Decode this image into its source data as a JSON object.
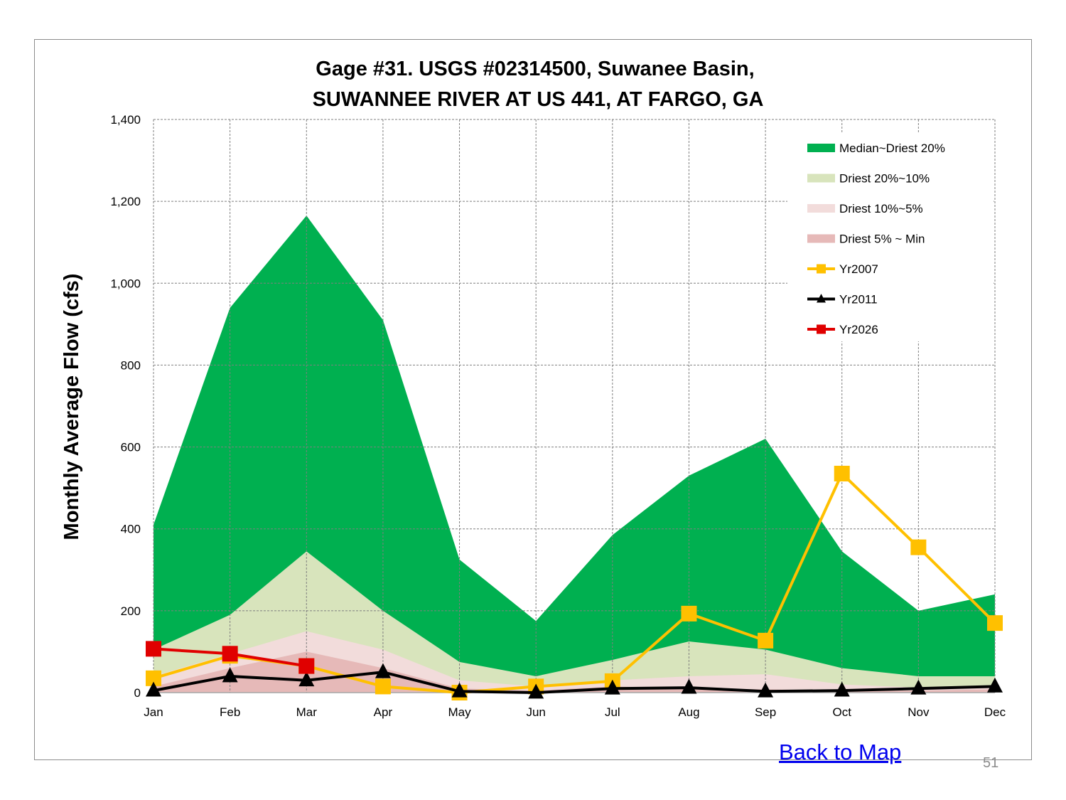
{
  "chart_data": {
    "type": "area",
    "title_lines": [
      "Gage #31. USGS #02314500, Suwanee Basin,",
      "SUWANNEE RIVER AT US 441, AT FARGO, GA"
    ],
    "ylabel": "Monthly Average Flow (cfs)",
    "xlabel": "",
    "ylim": [
      0,
      1400
    ],
    "yticks": [
      0,
      200,
      400,
      600,
      800,
      1000,
      1200,
      1400
    ],
    "ytick_labels": [
      "0",
      "200",
      "400",
      "600",
      "800",
      "1,000",
      "1,200",
      "1,400"
    ],
    "categories": [
      "Jan",
      "Feb",
      "Mar",
      "Apr",
      "May",
      "Jun",
      "Jul",
      "Aug",
      "Sep",
      "Oct",
      "Nov",
      "Dec"
    ],
    "grid": true,
    "legend_position": "top-right",
    "bands": [
      {
        "name": "Median~Driest 20%",
        "color": "#00b050",
        "values": [
          410,
          940,
          1165,
          910,
          325,
          175,
          385,
          530,
          620,
          345,
          200,
          240
        ]
      },
      {
        "name": "Driest 20%~10%",
        "color": "#d8e4bc",
        "values": [
          105,
          190,
          345,
          200,
          75,
          40,
          80,
          125,
          105,
          60,
          40,
          40
        ]
      },
      {
        "name": "Driest 10%~5%",
        "color": "#f2dcdb",
        "values": [
          40,
          95,
          150,
          105,
          30,
          15,
          30,
          40,
          45,
          20,
          12,
          12
        ]
      },
      {
        "name": "Driest 5% ~ Min",
        "color": "#e6b9b8",
        "values": [
          15,
          60,
          100,
          60,
          10,
          5,
          15,
          10,
          8,
          5,
          5,
          8
        ]
      }
    ],
    "series": [
      {
        "name": "Yr2007",
        "color": "#ffc000",
        "marker": "square",
        "values": [
          35,
          90,
          65,
          15,
          0,
          15,
          28,
          193,
          127,
          535,
          355,
          170
        ]
      },
      {
        "name": "Yr2011",
        "color": "#000000",
        "marker": "triangle",
        "values": [
          5,
          40,
          30,
          50,
          3,
          0,
          10,
          12,
          3,
          5,
          10,
          15
        ]
      },
      {
        "name": "Yr2026",
        "color": "#e00000",
        "marker": "square",
        "values": [
          107,
          95,
          65,
          null,
          null,
          null,
          null,
          null,
          null,
          null,
          null,
          null
        ]
      }
    ]
  },
  "footer": {
    "back_link": "Back to Map",
    "page_number": "51"
  }
}
